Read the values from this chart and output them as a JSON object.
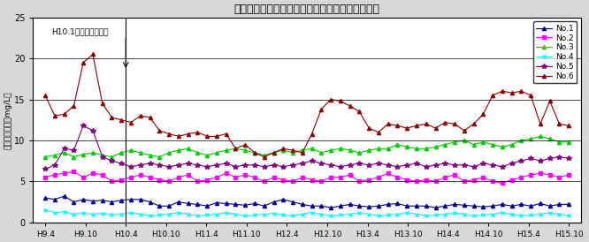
{
  "title": "場内モニタリング井戸の塗化物イオン濃度の推移",
  "ylabel": "塗化物イオン（mg/L）",
  "xlabels": [
    "H9.4",
    "H9.10",
    "H10.4",
    "H10.10",
    "H11.4",
    "H11.10",
    "H12.4",
    "H12.10",
    "H13.4",
    "H13.10",
    "H14.4",
    "H14.10",
    "H15.4",
    "H15.10"
  ],
  "ylim": [
    0,
    25
  ],
  "yticks": [
    0,
    5,
    10,
    15,
    20,
    25
  ],
  "annotation_label": "H10.1　一部供用開始",
  "series": [
    {
      "name": "No.1",
      "color": "#00008B",
      "marker": "^",
      "linestyle": "-",
      "values": [
        3.0,
        2.8,
        3.2,
        2.5,
        2.8,
        2.6,
        2.7,
        2.5,
        2.7,
        2.8,
        2.8,
        2.5,
        2.0,
        2.0,
        2.5,
        2.3,
        2.2,
        2.0,
        2.4,
        2.3,
        2.2,
        2.1,
        2.3,
        2.0,
        2.5,
        2.8,
        2.5,
        2.2,
        2.0,
        2.0,
        1.8,
        2.0,
        2.2,
        2.0,
        1.9,
        2.0,
        2.2,
        2.3,
        2.0,
        2.0,
        2.0,
        1.8,
        2.0,
        2.2,
        2.1,
        2.0,
        1.9,
        2.0,
        2.2,
        2.0,
        2.2,
        2.0,
        2.3,
        2.0,
        2.2,
        2.2
      ]
    },
    {
      "name": "No.2",
      "color": "#FF00FF",
      "marker": "s",
      "linestyle": "-",
      "values": [
        5.5,
        5.8,
        6.0,
        6.2,
        5.5,
        6.0,
        5.8,
        5.0,
        5.2,
        5.5,
        5.8,
        5.5,
        5.2,
        5.0,
        5.5,
        5.8,
        5.0,
        5.2,
        5.5,
        6.0,
        5.5,
        5.8,
        5.5,
        5.0,
        5.5,
        5.2,
        5.0,
        5.5,
        5.2,
        5.0,
        5.5,
        5.5,
        5.8,
        5.0,
        5.2,
        5.5,
        6.0,
        5.5,
        5.2,
        5.0,
        5.2,
        5.0,
        5.5,
        5.8,
        5.0,
        5.2,
        5.5,
        5.0,
        4.8,
        5.2,
        5.5,
        5.8,
        6.0,
        5.8,
        5.5,
        5.8
      ]
    },
    {
      "name": "No.3",
      "color": "#00CC00",
      "marker": "^",
      "linestyle": "-",
      "values": [
        8.0,
        8.2,
        8.5,
        8.0,
        8.3,
        8.5,
        8.2,
        8.0,
        8.5,
        8.8,
        8.5,
        8.2,
        8.0,
        8.5,
        8.8,
        9.0,
        8.5,
        8.2,
        8.5,
        8.8,
        9.0,
        8.8,
        8.5,
        8.2,
        8.5,
        8.8,
        8.5,
        8.8,
        9.0,
        8.5,
        8.8,
        9.0,
        8.8,
        8.5,
        8.8,
        9.0,
        9.0,
        9.5,
        9.2,
        9.0,
        9.0,
        9.2,
        9.5,
        9.8,
        10.0,
        9.5,
        9.8,
        9.5,
        9.2,
        9.5,
        10.0,
        10.2,
        10.5,
        10.2,
        9.8,
        9.8
      ]
    },
    {
      "name": "No.4",
      "color": "#00FFFF",
      "marker": "x",
      "linestyle": "-",
      "values": [
        1.5,
        1.2,
        1.3,
        1.0,
        1.2,
        1.0,
        1.1,
        0.9,
        1.0,
        1.2,
        1.0,
        0.8,
        0.9,
        1.0,
        1.2,
        1.0,
        0.8,
        0.9,
        1.0,
        1.2,
        1.0,
        0.8,
        0.9,
        1.0,
        1.1,
        0.9,
        0.8,
        1.0,
        1.2,
        1.0,
        0.8,
        0.9,
        1.0,
        1.2,
        1.0,
        0.8,
        0.9,
        1.0,
        1.2,
        1.0,
        0.8,
        0.9,
        1.0,
        1.2,
        1.0,
        0.8,
        0.9,
        1.0,
        1.2,
        1.0,
        0.8,
        0.9,
        1.0,
        1.2,
        1.0,
        0.8
      ]
    },
    {
      "name": "No.5",
      "color": "#800080",
      "marker": "*",
      "linestyle": "-",
      "values": [
        6.5,
        7.0,
        9.0,
        8.8,
        11.8,
        11.2,
        8.0,
        7.5,
        7.2,
        6.8,
        7.0,
        7.2,
        7.0,
        6.8,
        7.0,
        7.2,
        7.0,
        6.8,
        7.0,
        7.2,
        6.8,
        7.0,
        7.0,
        6.8,
        7.0,
        6.8,
        7.0,
        7.2,
        7.5,
        7.2,
        7.0,
        6.8,
        7.0,
        7.2,
        7.0,
        7.2,
        7.0,
        6.8,
        7.0,
        7.2,
        6.8,
        7.0,
        7.2,
        7.0,
        7.0,
        6.8,
        7.2,
        7.0,
        6.8,
        7.2,
        7.5,
        7.8,
        7.5,
        7.8,
        8.0,
        7.8
      ]
    },
    {
      "name": "No.6",
      "color": "#8B0000",
      "marker": "^",
      "linestyle": "-",
      "values": [
        15.5,
        13.0,
        13.2,
        14.2,
        19.5,
        20.5,
        14.5,
        12.8,
        12.5,
        12.2,
        13.0,
        12.8,
        11.2,
        10.8,
        10.5,
        10.8,
        11.0,
        10.5,
        10.5,
        10.8,
        9.0,
        9.5,
        8.5,
        8.0,
        8.5,
        9.0,
        8.8,
        8.5,
        10.8,
        13.8,
        15.0,
        14.8,
        14.2,
        13.5,
        11.5,
        11.0,
        12.0,
        11.8,
        11.5,
        11.8,
        12.0,
        11.5,
        12.2,
        12.0,
        11.2,
        12.0,
        13.2,
        15.5,
        16.0,
        15.8,
        16.0,
        15.5,
        12.0,
        14.8,
        12.0,
        11.8
      ]
    }
  ]
}
